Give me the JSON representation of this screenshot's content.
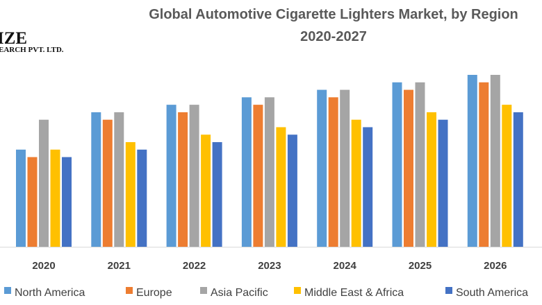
{
  "logo": {
    "line1": "IZE",
    "line2": "EARCH PVT. LTD."
  },
  "chart_data": {
    "type": "bar",
    "title": "Global Automotive Cigarette Lighters Market, by Region",
    "subtitle": "2020-2027",
    "xlabel": "",
    "ylabel": "",
    "ylim": [
      0,
      23
    ],
    "grid": false,
    "legend_position": "bottom",
    "categories": [
      "2020",
      "2021",
      "2022",
      "2023",
      "2024",
      "2025",
      "2026"
    ],
    "series": [
      {
        "name": "North America",
        "color": "#5B9BD5",
        "values": [
          13,
          18,
          19,
          20,
          21,
          22,
          23
        ]
      },
      {
        "name": "Europe",
        "color": "#ED7D31",
        "values": [
          12,
          17,
          18,
          19,
          20,
          21,
          22
        ]
      },
      {
        "name": "Asia Pacific",
        "color": "#A5A5A5",
        "values": [
          17,
          18,
          19,
          20,
          21,
          22,
          23
        ]
      },
      {
        "name": "Middle East & Africa",
        "color": "#FFC000",
        "values": [
          13,
          14,
          15,
          16,
          17,
          18,
          19
        ]
      },
      {
        "name": "South America",
        "color": "#4472C4",
        "values": [
          12,
          13,
          14,
          15,
          16,
          17,
          18
        ]
      }
    ]
  }
}
